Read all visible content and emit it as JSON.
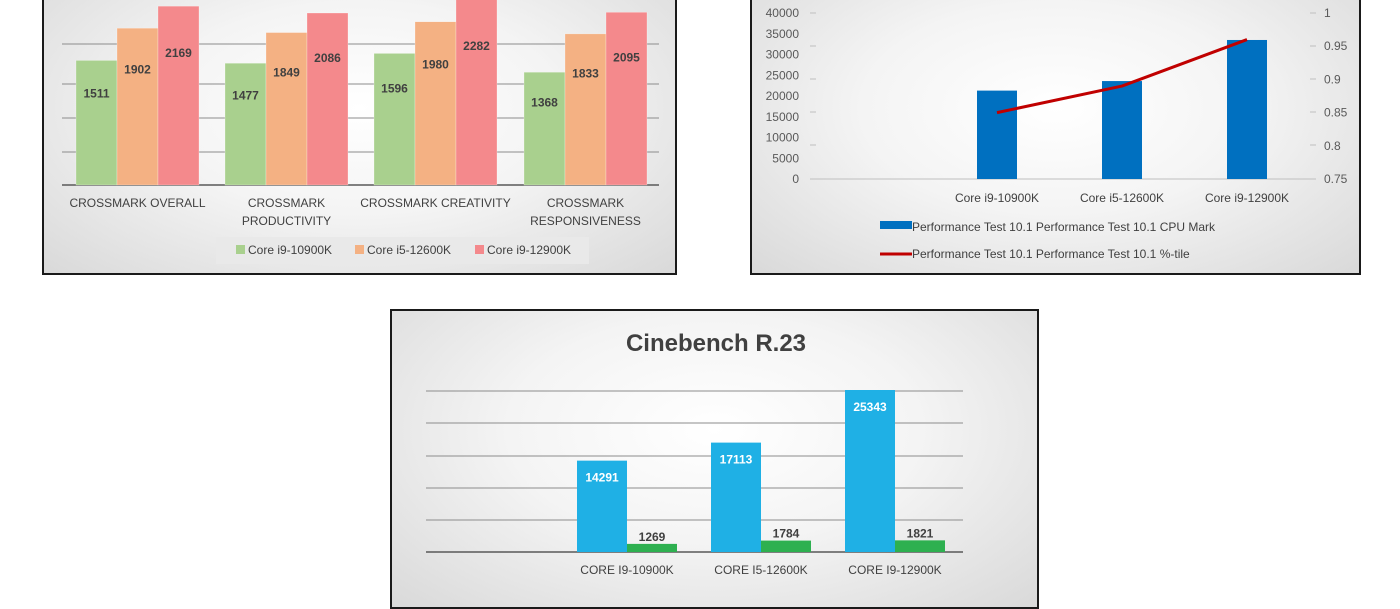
{
  "chart_data": [
    {
      "type": "bar",
      "title": "",
      "categories": [
        [
          "CROSSMARK OVERALL"
        ],
        [
          "CROSSMARK",
          "PRODUCTIVITY"
        ],
        [
          "CROSSMARK CREATIVITY"
        ],
        [
          "CROSSMARK",
          "RESPONSIVENESS"
        ]
      ],
      "series": [
        {
          "name": "Core i9-10900K",
          "color": "#a9d08e",
          "values": [
            1511,
            1477,
            1596,
            1368
          ]
        },
        {
          "name": "Core i5-12600K",
          "color": "#f4b183",
          "values": [
            1902,
            1849,
            1980,
            1833
          ]
        },
        {
          "name": "Core i9-12900K",
          "color": "#f4898c",
          "values": [
            2169,
            2086,
            2282,
            2095
          ]
        }
      ],
      "ylim": [
        0,
        2500
      ],
      "grid": true,
      "legend": "bottom",
      "data_labels": true
    },
    {
      "type": "bar",
      "title": "",
      "categories": [
        "Core i9-10900K",
        "Core i5-12600K",
        "Core i9-12900K"
      ],
      "series": [
        {
          "name": "Performance Test 10.1 Performance Test 10.1 CPU Mark",
          "color": "#0070c0",
          "type": "bar",
          "axis": "left",
          "values": [
            21300,
            23600,
            33500
          ]
        },
        {
          "name": "Performance Test 10.1 Performance Test 10.1 %-tile",
          "color": "#c00000",
          "type": "line",
          "axis": "right",
          "values": [
            0.85,
            0.89,
            0.96
          ]
        }
      ],
      "yticks_left": [
        "0",
        "5000",
        "10000",
        "15000",
        "20000",
        "25000",
        "30000",
        "35000",
        "40000"
      ],
      "yticks_right": [
        "0.75",
        "0.8",
        "0.85",
        "0.9",
        "0.95",
        "1"
      ],
      "ylim_left": [
        0,
        40000
      ],
      "ylim_right": [
        0.75,
        1
      ],
      "grid": false,
      "legend": "bottom"
    },
    {
      "type": "bar",
      "title": "Cinebench R.23",
      "categories": [
        "CORE I9-10900K",
        "CORE I5-12600K",
        "CORE I9-12900K"
      ],
      "series": [
        {
          "name": "",
          "color": "#1fb0e5",
          "values": [
            14291,
            17113,
            25343
          ]
        },
        {
          "name": "",
          "color": "#2eb050",
          "values": [
            1269,
            1784,
            1821
          ]
        }
      ],
      "ylim": [
        0,
        25343
      ],
      "grid": true,
      "legend": "none",
      "data_labels": true
    }
  ]
}
